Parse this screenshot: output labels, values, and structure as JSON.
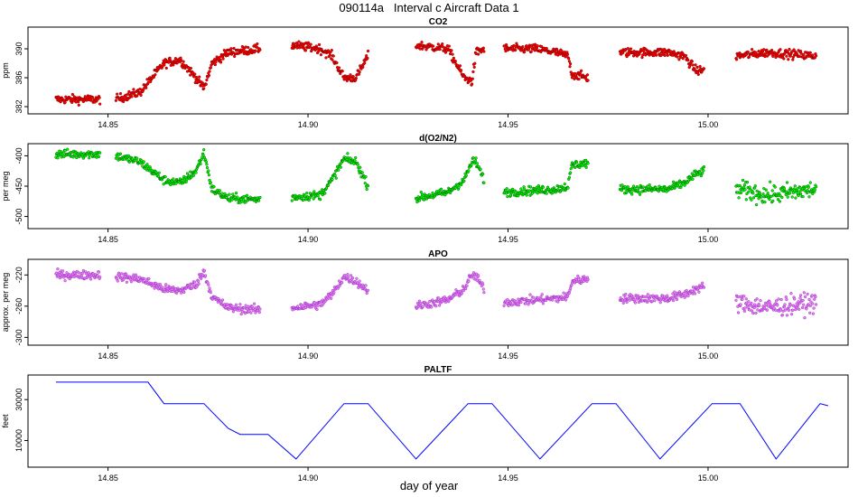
{
  "chart_data": [
    {
      "type": "scatter",
      "title": "CO2",
      "xlabel": "day of year",
      "ylabel": "ppm",
      "xlim": [
        14.83,
        15.035
      ],
      "ylim": [
        381,
        393
      ],
      "yticks": [
        382,
        386,
        390
      ],
      "xticks": [
        14.85,
        14.9,
        14.95,
        15.0
      ],
      "xtick_labels": [
        "14.85",
        "14.90",
        "14.95",
        "15.00"
      ],
      "colors": {
        "fill": "#ff0000",
        "edge": "#8b0000"
      },
      "segments": [
        {
          "x": [
            14.837,
            14.848
          ],
          "y": [
            383.0,
            383.0
          ]
        },
        {
          "x": [
            14.852,
            14.858,
            14.864,
            14.868,
            14.872,
            14.874,
            14.876,
            14.88,
            14.888
          ],
          "y": [
            383.0,
            384.0,
            388.0,
            388.5,
            386.0,
            384.5,
            388.0,
            389.5,
            390.0
          ]
        },
        {
          "x": [
            14.896,
            14.903,
            14.906,
            14.909,
            14.912,
            14.915
          ],
          "y": [
            390.5,
            390.0,
            389.0,
            386.0,
            386.0,
            389.0
          ]
        },
        {
          "x": [
            14.927,
            14.935,
            14.939,
            14.941,
            14.942,
            14.944
          ],
          "y": [
            390.5,
            390.0,
            386.0,
            385.5,
            389.5,
            390.0
          ]
        },
        {
          "x": [
            14.949,
            14.957,
            14.962,
            14.965,
            14.966,
            14.97
          ],
          "y": [
            390.0,
            390.0,
            389.5,
            389.0,
            386.5,
            386.0
          ]
        },
        {
          "x": [
            14.978,
            14.99,
            14.994,
            14.997,
            14.999
          ],
          "y": [
            389.5,
            389.5,
            389.0,
            387.0,
            387.0
          ]
        },
        {
          "x": [
            15.007,
            15.015,
            15.027
          ],
          "y": [
            389.0,
            389.5,
            389.0
          ]
        }
      ]
    },
    {
      "type": "scatter",
      "title": "d(O2/N2)",
      "xlabel": "day of year",
      "ylabel": "per meg",
      "xlim": [
        14.83,
        15.035
      ],
      "ylim": [
        -520,
        -380
      ],
      "yticks": [
        -500,
        -450,
        -400
      ],
      "xticks": [
        14.85,
        14.9,
        14.95,
        15.0
      ],
      "xtick_labels": [
        "14.85",
        "14.90",
        "14.95",
        "15.00"
      ],
      "colors": {
        "fill": "#00ff00",
        "edge": "#006400"
      },
      "segments": [
        {
          "x": [
            14.837,
            14.848
          ],
          "y": [
            -397,
            -397
          ]
        },
        {
          "x": [
            14.852,
            14.858,
            14.864,
            14.868,
            14.872,
            14.874,
            14.876,
            14.88,
            14.888
          ],
          "y": [
            -400,
            -410,
            -440,
            -445,
            -425,
            -395,
            -455,
            -470,
            -472
          ]
        },
        {
          "x": [
            14.896,
            14.903,
            14.906,
            14.909,
            14.912,
            14.915
          ],
          "y": [
            -468,
            -465,
            -440,
            -405,
            -410,
            -450
          ]
        },
        {
          "x": [
            14.927,
            14.935,
            14.939,
            14.941,
            14.942,
            14.944
          ],
          "y": [
            -470,
            -460,
            -440,
            -410,
            -410,
            -440
          ]
        },
        {
          "x": [
            14.949,
            14.957,
            14.962,
            14.965,
            14.966,
            14.97
          ],
          "y": [
            -460,
            -457,
            -455,
            -450,
            -415,
            -412
          ]
        },
        {
          "x": [
            14.978,
            14.99,
            14.994,
            14.997,
            14.999
          ],
          "y": [
            -455,
            -455,
            -445,
            -430,
            -425
          ]
        },
        {
          "x": [
            15.007,
            15.015,
            15.027
          ],
          "y": [
            -455,
            -465,
            -455
          ]
        }
      ]
    },
    {
      "type": "scatter",
      "title": "APO",
      "xlabel": "day of year",
      "ylabel": "approx. per meg",
      "xlim": [
        14.83,
        15.035
      ],
      "ylim": [
        -310,
        -200
      ],
      "yticks": [
        -300,
        -260,
        -220
      ],
      "xticks": [
        14.85,
        14.9,
        14.95,
        15.0
      ],
      "xtick_labels": [
        "14.85",
        "14.90",
        "14.95",
        "15.00"
      ],
      "colors": {
        "fill": "#ee82ee",
        "edge": "#9932cc"
      },
      "segments": [
        {
          "x": [
            14.837,
            14.848
          ],
          "y": [
            -220,
            -220
          ]
        },
        {
          "x": [
            14.852,
            14.858,
            14.864,
            14.868,
            14.872,
            14.874,
            14.876,
            14.88,
            14.888
          ],
          "y": [
            -222,
            -225,
            -238,
            -240,
            -232,
            -215,
            -248,
            -262,
            -265
          ]
        },
        {
          "x": [
            14.896,
            14.903,
            14.906,
            14.909,
            14.912,
            14.915
          ],
          "y": [
            -262,
            -258,
            -245,
            -222,
            -228,
            -240
          ]
        },
        {
          "x": [
            14.927,
            14.935,
            14.939,
            14.941,
            14.942,
            14.944
          ],
          "y": [
            -260,
            -252,
            -238,
            -220,
            -222,
            -238
          ]
        },
        {
          "x": [
            14.949,
            14.957,
            14.962,
            14.965,
            14.966,
            14.97
          ],
          "y": [
            -255,
            -252,
            -250,
            -248,
            -228,
            -225
          ]
        },
        {
          "x": [
            14.978,
            14.99,
            14.994,
            14.997,
            14.999
          ],
          "y": [
            -250,
            -250,
            -245,
            -238,
            -235
          ]
        },
        {
          "x": [
            15.007,
            15.015,
            15.027
          ],
          "y": [
            -255,
            -262,
            -255
          ]
        }
      ]
    },
    {
      "type": "line",
      "title": "PALTF",
      "xlabel": "day of year",
      "ylabel": "feet",
      "xlim": [
        14.83,
        15.035
      ],
      "ylim": [
        -3000,
        42000
      ],
      "yticks": [
        10000,
        30000
      ],
      "xticks": [
        14.85,
        14.9,
        14.95,
        15.0
      ],
      "xtick_labels": [
        "14.85",
        "14.90",
        "14.95",
        "15.00"
      ],
      "colors": {
        "line": "#0000ff"
      },
      "x": [
        14.837,
        14.86,
        14.864,
        14.874,
        14.876,
        14.88,
        14.883,
        14.89,
        14.897,
        14.909,
        14.915,
        14.927,
        14.94,
        14.946,
        14.958,
        14.971,
        14.977,
        14.988,
        15.001,
        15.008,
        15.017,
        15.028,
        15.03
      ],
      "y": [
        38500,
        38500,
        28000,
        28000,
        24000,
        16000,
        13000,
        13000,
        1000,
        28000,
        28000,
        1000,
        28000,
        28000,
        1000,
        28000,
        28000,
        1000,
        28000,
        28000,
        1000,
        28000,
        27000
      ]
    }
  ],
  "main_title": "090114a   Interval c Aircraft Data 1",
  "xaxis_title": "day of year"
}
